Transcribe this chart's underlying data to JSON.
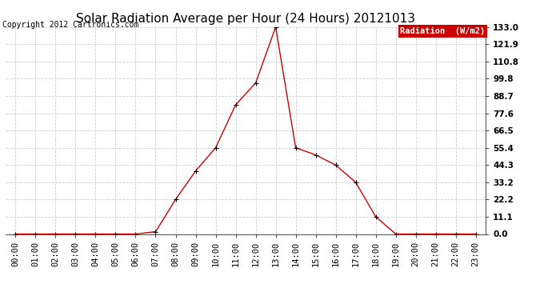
{
  "title": "Solar Radiation Average per Hour (24 Hours) 20121013",
  "copyright": "Copyright 2012 Cartronics.com",
  "legend_label": "Radiation  (W/m2)",
  "hours": [
    0,
    1,
    2,
    3,
    4,
    5,
    6,
    7,
    8,
    9,
    10,
    11,
    12,
    13,
    14,
    15,
    16,
    17,
    18,
    19,
    20,
    21,
    22,
    23
  ],
  "hour_labels": [
    "00:00",
    "01:00",
    "02:00",
    "03:00",
    "04:00",
    "05:00",
    "06:00",
    "07:00",
    "08:00",
    "09:00",
    "10:00",
    "11:00",
    "12:00",
    "13:00",
    "14:00",
    "15:00",
    "16:00",
    "17:00",
    "18:00",
    "19:00",
    "20:00",
    "21:00",
    "22:00",
    "23:00"
  ],
  "values": [
    0.0,
    0.0,
    0.0,
    0.0,
    0.0,
    0.0,
    0.0,
    1.5,
    22.2,
    40.5,
    55.4,
    83.0,
    97.0,
    133.0,
    55.4,
    50.8,
    44.3,
    33.2,
    11.1,
    0.0,
    0.0,
    0.0,
    0.0,
    0.0
  ],
  "line_color": "#cc0000",
  "marker_color": "#000000",
  "bg_color": "#ffffff",
  "grid_color": "#cccccc",
  "yticks": [
    0.0,
    11.1,
    22.2,
    33.2,
    44.3,
    55.4,
    66.5,
    77.6,
    88.7,
    99.8,
    110.8,
    121.9,
    133.0
  ],
  "ylim": [
    0,
    133.0
  ],
  "title_fontsize": 11,
  "copyright_fontsize": 7,
  "tick_fontsize": 7.5,
  "legend_bg": "#cc0000",
  "legend_text_color": "#ffffff"
}
